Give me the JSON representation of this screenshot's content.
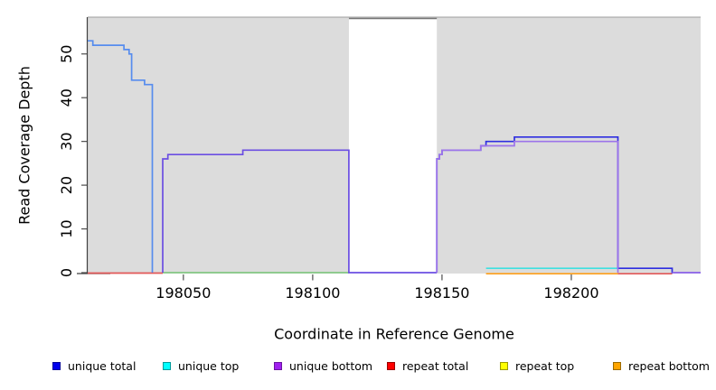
{
  "figure": {
    "ylabel": "Read Coverage Depth",
    "xlabel": "Coordinate in Reference Genome"
  },
  "legend": {
    "items": [
      {
        "label": "unique total",
        "color": "#0000ee",
        "border": "#00009a"
      },
      {
        "label": "unique top",
        "color": "#00ffff",
        "border": "#009a9a"
      },
      {
        "label": "unique bottom",
        "color": "#a020f0",
        "border": "#6a14a0"
      },
      {
        "label": "repeat total",
        "color": "#ff0000",
        "border": "#9a0000"
      },
      {
        "label": "repeat top",
        "color": "#ffff00",
        "border": "#9a9a00"
      },
      {
        "label": "repeat bottom",
        "color": "#ffa500",
        "border": "#9a6a00"
      }
    ]
  },
  "chart_data": {
    "type": "line",
    "title": "",
    "xlabel": "Coordinate in Reference Genome",
    "ylabel": "Read Coverage Depth",
    "xlim": [
      198013,
      198250
    ],
    "ylim": [
      0,
      58
    ],
    "x_ticks": [
      198050,
      198100,
      198150,
      198200
    ],
    "x_tick_labels": [
      "198050",
      "198100",
      "198150",
      "198200"
    ],
    "y_ticks": [
      0,
      10,
      20,
      30,
      40,
      50
    ],
    "y_tick_labels": [
      "0",
      "10",
      "20",
      "30",
      "40",
      "50"
    ],
    "panel_bg": "#dcdcdc",
    "mask_region": {
      "x1": 198114,
      "x2": 198148,
      "fill": "#ffffff",
      "top_line": "#787878"
    },
    "grid": false,
    "legend_position": "bottom",
    "series": [
      {
        "name": "repeat total",
        "draw_color": "#e25757",
        "segments": [
          [
            [
              198013,
              -0.1
            ],
            [
              198042,
              -0.1
            ]
          ],
          [
            [
              198218,
              -0.25
            ],
            [
              198239,
              -0.25
            ]
          ]
        ]
      },
      {
        "name": "unique top / repeat top overlap baseline",
        "draw_color": "#84c884",
        "segments": [
          [
            [
              198042,
              0
            ],
            [
              198114,
              0
            ]
          ]
        ]
      },
      {
        "name": "repeat bottom",
        "draw_color": "#ff9f1a",
        "segments": [
          [
            [
              198167,
              -0.25
            ],
            [
              198218,
              -0.25
            ]
          ]
        ]
      },
      {
        "name": "unique top",
        "draw_color": "#40e0e0",
        "segments": [
          [
            [
              198167,
              1
            ],
            [
              198218,
              1
            ]
          ]
        ]
      },
      {
        "name": "unique total (left segment)",
        "draw_color": "#568cee",
        "segments": [
          [
            [
              198013,
              53
            ],
            [
              198015,
              52
            ],
            [
              198027,
              51
            ],
            [
              198029,
              50
            ],
            [
              198030,
              44
            ],
            [
              198035,
              43
            ],
            [
              198038,
              0
            ]
          ]
        ]
      },
      {
        "name": "unique total (right segment)",
        "draw_color": "#2e2ee0",
        "segments": [
          [
            [
              198148,
              0
            ],
            [
              198148,
              26
            ],
            [
              198149,
              27
            ],
            [
              198150,
              28
            ],
            [
              198165,
              29
            ],
            [
              198167,
              30
            ],
            [
              198178,
              31
            ],
            [
              198218,
              1
            ],
            [
              198239,
              0
            ],
            [
              198250,
              0
            ]
          ]
        ]
      },
      {
        "name": "unique bottom (left segment)",
        "draw_color": "#6b4ee2",
        "segments": [
          [
            [
              198042,
              0
            ],
            [
              198042,
              26
            ],
            [
              198044,
              27
            ],
            [
              198073,
              28
            ],
            [
              198114,
              0
            ],
            [
              198148,
              0
            ]
          ]
        ]
      },
      {
        "name": "unique bottom (right segment)",
        "draw_color": "#9d74ea",
        "segments": [
          [
            [
              198148,
              0
            ],
            [
              198148,
              26
            ],
            [
              198149,
              27
            ],
            [
              198150,
              28
            ],
            [
              198165,
              29
            ],
            [
              198178,
              30
            ],
            [
              198218,
              0
            ]
          ],
          [
            [
              198239,
              0
            ],
            [
              198250,
              0
            ]
          ]
        ]
      }
    ]
  }
}
